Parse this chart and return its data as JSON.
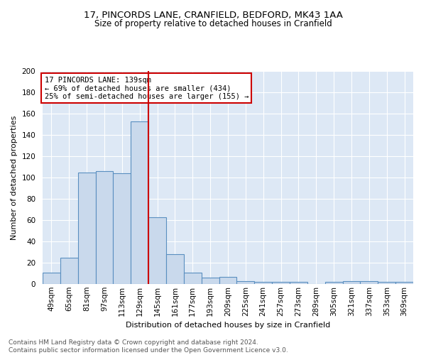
{
  "title1": "17, PINCORDS LANE, CRANFIELD, BEDFORD, MK43 1AA",
  "title2": "Size of property relative to detached houses in Cranfield",
  "xlabel": "Distribution of detached houses by size in Cranfield",
  "ylabel": "Number of detached properties",
  "footnote": "Contains HM Land Registry data © Crown copyright and database right 2024.\nContains public sector information licensed under the Open Government Licence v3.0.",
  "bar_labels": [
    "49sqm",
    "65sqm",
    "81sqm",
    "97sqm",
    "113sqm",
    "129sqm",
    "145sqm",
    "161sqm",
    "177sqm",
    "193sqm",
    "209sqm",
    "225sqm",
    "241sqm",
    "257sqm",
    "273sqm",
    "289sqm",
    "305sqm",
    "321sqm",
    "337sqm",
    "353sqm",
    "369sqm"
  ],
  "bar_values": [
    11,
    25,
    105,
    106,
    104,
    153,
    63,
    28,
    11,
    6,
    7,
    3,
    2,
    2,
    2,
    0,
    2,
    3,
    3,
    2,
    2
  ],
  "bar_color": "#c9d9ec",
  "bar_edge_color": "#5a8fc0",
  "annotation_line1": "17 PINCORDS LANE: 139sqm",
  "annotation_line2": "← 69% of detached houses are smaller (434)",
  "annotation_line3": "25% of semi-detached houses are larger (155) →",
  "vline_color": "#cc0000",
  "vline_x_index": 5.5,
  "ylim": [
    0,
    200
  ],
  "yticks": [
    0,
    20,
    40,
    60,
    80,
    100,
    120,
    140,
    160,
    180,
    200
  ],
  "bg_color": "#dde8f5",
  "annotation_box_color": "#ffffff",
  "annotation_box_edge": "#cc0000",
  "title1_fontsize": 9.5,
  "title2_fontsize": 8.5,
  "ylabel_fontsize": 8.0,
  "xlabel_fontsize": 8.0,
  "tick_fontsize": 7.5,
  "annot_fontsize": 7.5,
  "footnote_fontsize": 6.5
}
